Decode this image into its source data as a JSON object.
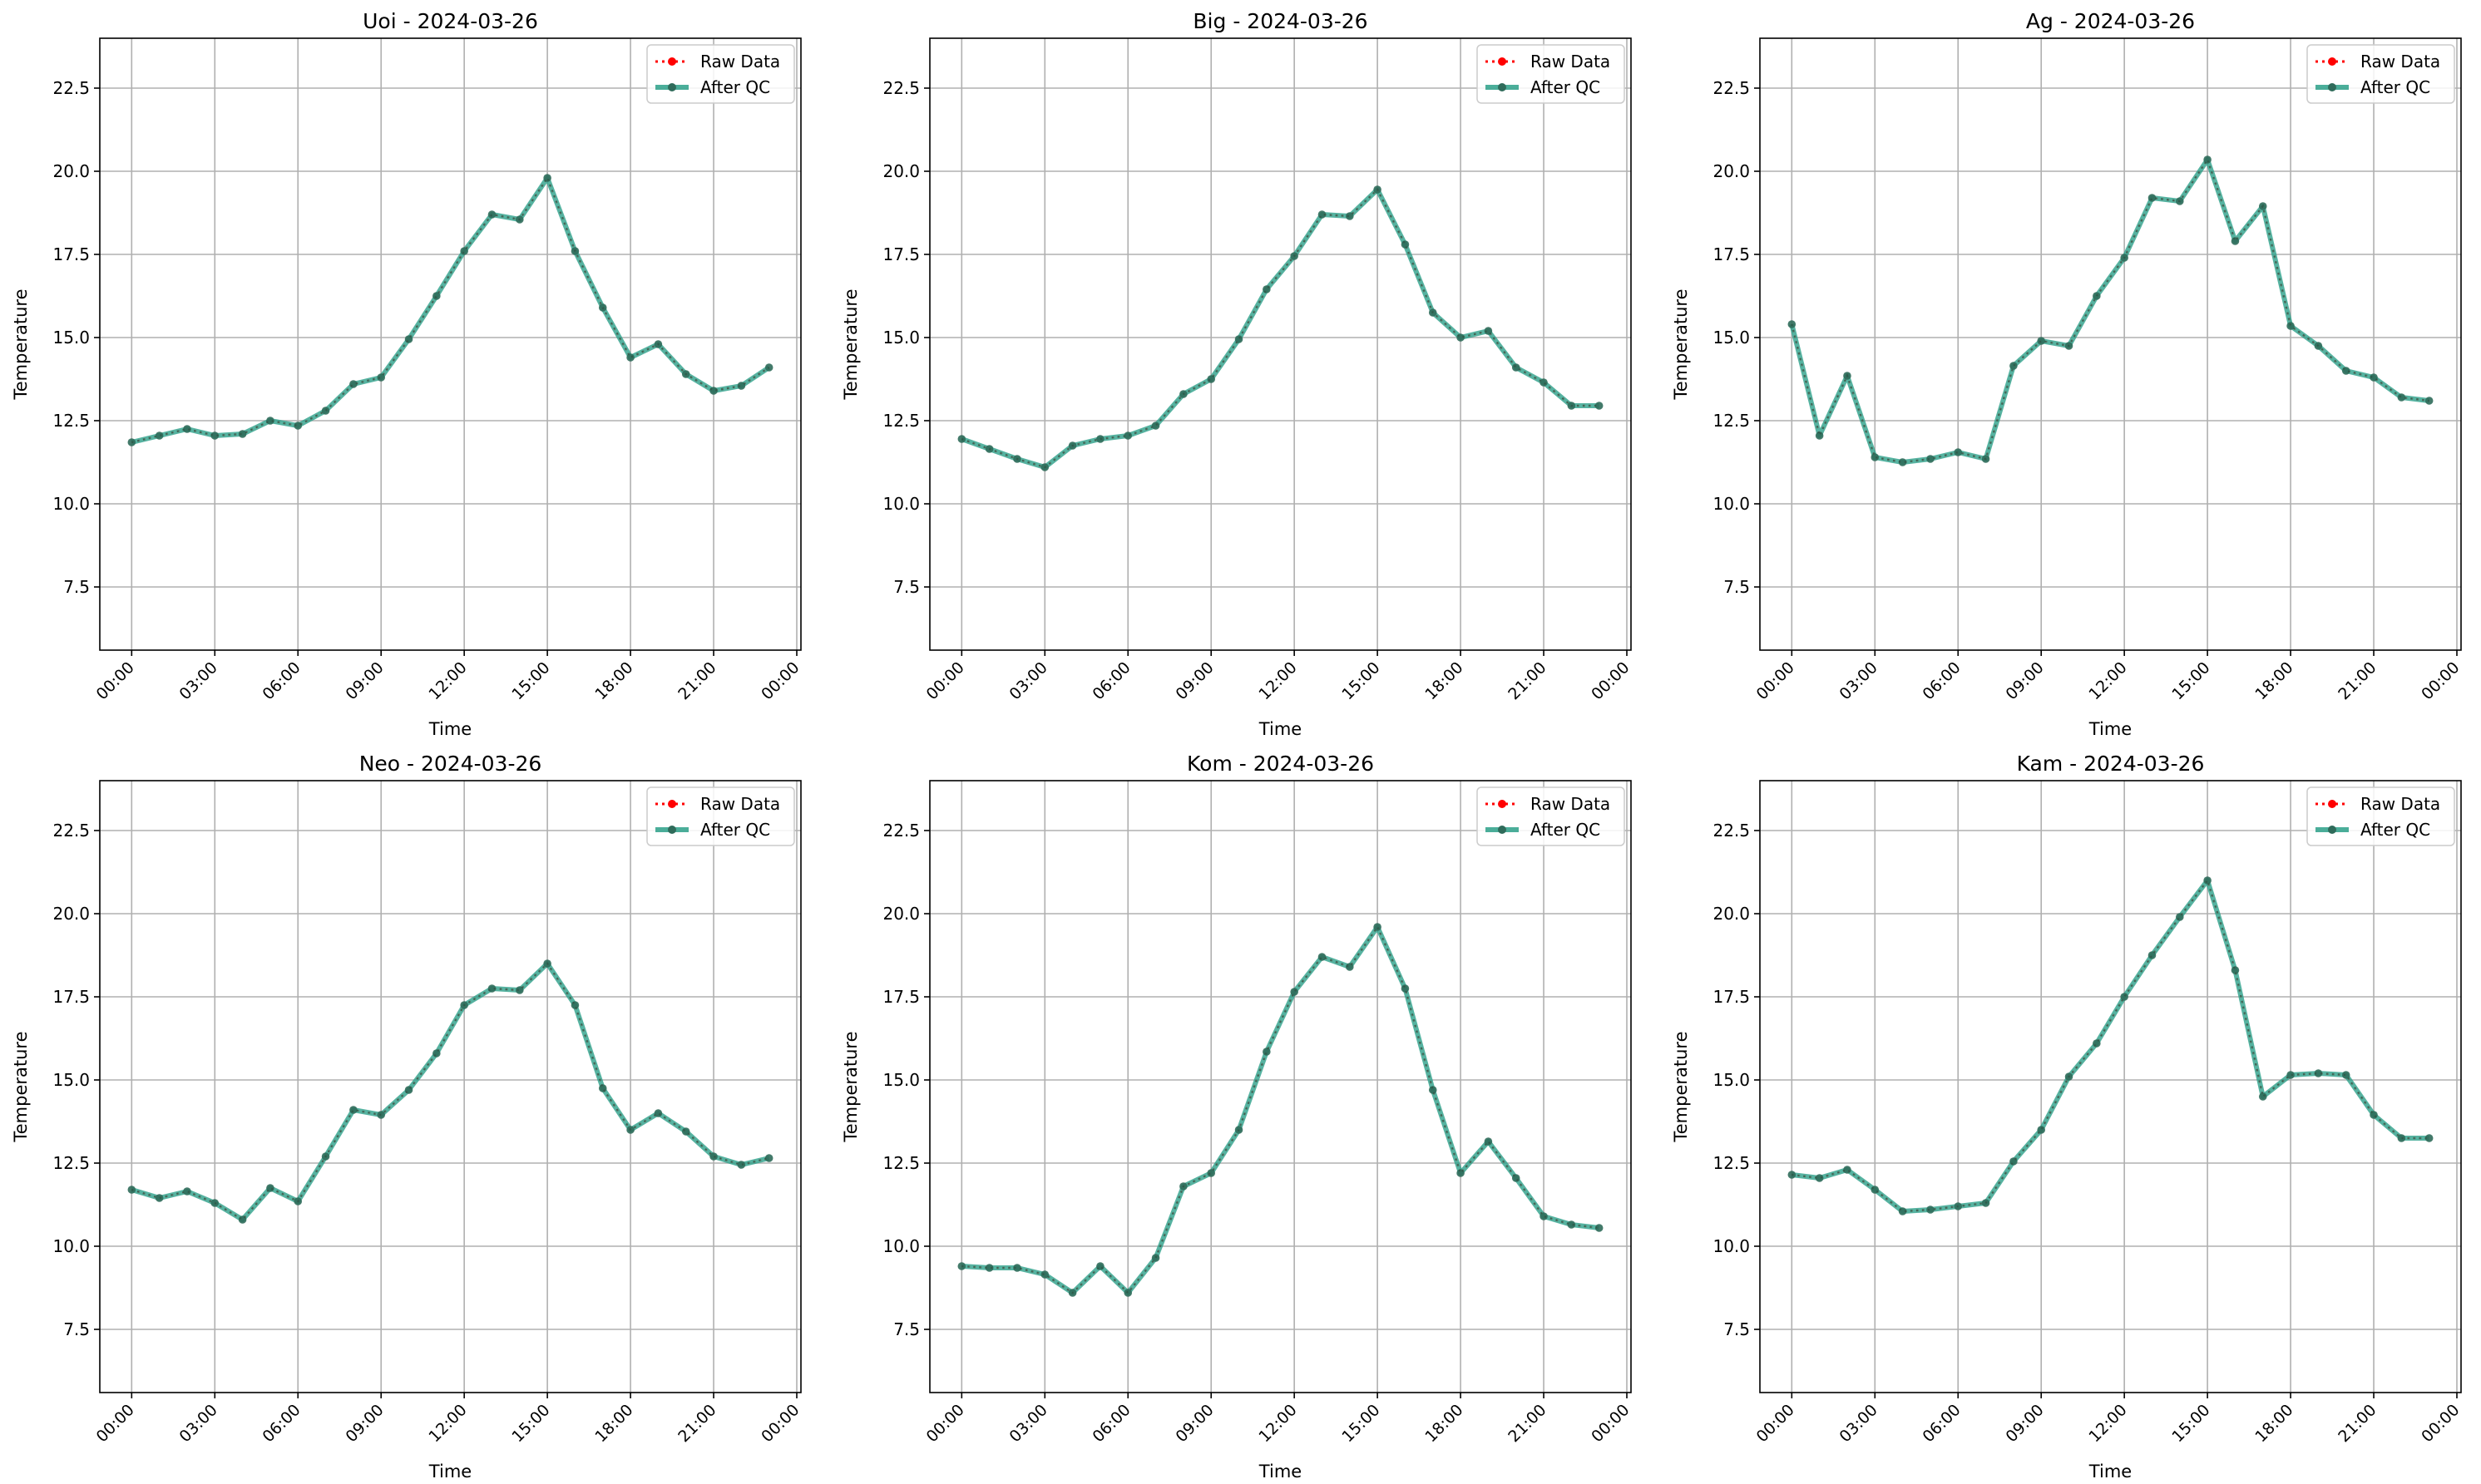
{
  "figure": {
    "x_label": "Time",
    "y_label": "Temperature",
    "legend": {
      "raw_label": "Raw Data",
      "qc_label": "After QC"
    },
    "colors": {
      "raw": "#ff0000",
      "qc": "#2ca089",
      "marker": "#2f6b5a",
      "grid": "#b0b0b0",
      "axis": "#000000"
    }
  },
  "chart_data": [
    {
      "type": "line",
      "title": "Uoi - 2024-03-26",
      "x": [
        "00:00",
        "01:00",
        "02:00",
        "03:00",
        "04:00",
        "05:00",
        "06:00",
        "07:00",
        "08:00",
        "09:00",
        "10:00",
        "11:00",
        "12:00",
        "13:00",
        "14:00",
        "15:00",
        "16:00",
        "17:00",
        "18:00",
        "19:00",
        "20:00",
        "21:00",
        "22:00",
        "23:00"
      ],
      "x_ticks": [
        "00:00",
        "03:00",
        "06:00",
        "09:00",
        "12:00",
        "15:00",
        "18:00",
        "21:00",
        "00:00"
      ],
      "y_ticks": [
        7.5,
        10.0,
        12.5,
        15.0,
        17.5,
        20.0,
        22.5
      ],
      "ylim": [
        5.6,
        24.0
      ],
      "xlabel": "Time",
      "ylabel": "Temperature",
      "legend": "top-right",
      "grid": true,
      "series": [
        {
          "name": "Raw Data",
          "values": [
            11.85,
            12.05,
            12.25,
            12.05,
            12.1,
            12.5,
            12.35,
            12.8,
            13.6,
            13.8,
            14.95,
            16.25,
            17.6,
            18.7,
            18.55,
            19.8,
            17.6,
            15.9,
            14.4,
            14.8,
            13.9,
            13.4,
            13.55,
            14.1
          ]
        },
        {
          "name": "After QC",
          "values": [
            11.85,
            12.05,
            12.25,
            12.05,
            12.1,
            12.5,
            12.35,
            12.8,
            13.6,
            13.8,
            14.95,
            16.25,
            17.6,
            18.7,
            18.55,
            19.8,
            17.6,
            15.9,
            14.4,
            14.8,
            13.9,
            13.4,
            13.55,
            14.1
          ]
        }
      ]
    },
    {
      "type": "line",
      "title": "Big - 2024-03-26",
      "x": [
        "00:00",
        "01:00",
        "02:00",
        "03:00",
        "04:00",
        "05:00",
        "06:00",
        "07:00",
        "08:00",
        "09:00",
        "10:00",
        "11:00",
        "12:00",
        "13:00",
        "14:00",
        "15:00",
        "16:00",
        "17:00",
        "18:00",
        "19:00",
        "20:00",
        "21:00",
        "22:00",
        "23:00"
      ],
      "x_ticks": [
        "00:00",
        "03:00",
        "06:00",
        "09:00",
        "12:00",
        "15:00",
        "18:00",
        "21:00",
        "00:00"
      ],
      "y_ticks": [
        7.5,
        10.0,
        12.5,
        15.0,
        17.5,
        20.0,
        22.5
      ],
      "ylim": [
        5.6,
        24.0
      ],
      "xlabel": "Time",
      "ylabel": "Temperature",
      "legend": "top-right",
      "grid": true,
      "series": [
        {
          "name": "Raw Data",
          "values": [
            11.95,
            11.65,
            11.35,
            11.1,
            11.75,
            11.95,
            12.05,
            12.35,
            13.3,
            13.75,
            14.95,
            16.45,
            17.45,
            18.7,
            18.65,
            19.45,
            17.8,
            15.75,
            15.0,
            15.2,
            14.1,
            13.65,
            12.95,
            12.95
          ]
        },
        {
          "name": "After QC",
          "values": [
            11.95,
            11.65,
            11.35,
            11.1,
            11.75,
            11.95,
            12.05,
            12.35,
            13.3,
            13.75,
            14.95,
            16.45,
            17.45,
            18.7,
            18.65,
            19.45,
            17.8,
            15.75,
            15.0,
            15.2,
            14.1,
            13.65,
            12.95,
            12.95
          ]
        }
      ]
    },
    {
      "type": "line",
      "title": "Ag - 2024-03-26",
      "x": [
        "00:00",
        "01:00",
        "02:00",
        "03:00",
        "04:00",
        "05:00",
        "06:00",
        "07:00",
        "08:00",
        "09:00",
        "10:00",
        "11:00",
        "12:00",
        "13:00",
        "14:00",
        "15:00",
        "16:00",
        "17:00",
        "18:00",
        "19:00",
        "20:00",
        "21:00",
        "22:00",
        "23:00"
      ],
      "x_ticks": [
        "00:00",
        "03:00",
        "06:00",
        "09:00",
        "12:00",
        "15:00",
        "18:00",
        "21:00",
        "00:00"
      ],
      "y_ticks": [
        7.5,
        10.0,
        12.5,
        15.0,
        17.5,
        20.0,
        22.5
      ],
      "ylim": [
        5.6,
        24.0
      ],
      "xlabel": "Time",
      "ylabel": "Temperature",
      "legend": "top-right",
      "grid": true,
      "series": [
        {
          "name": "Raw Data",
          "values": [
            15.4,
            12.05,
            13.85,
            11.4,
            11.25,
            11.35,
            11.55,
            11.35,
            14.15,
            14.9,
            14.75,
            16.25,
            17.4,
            19.2,
            19.1,
            20.35,
            17.9,
            18.95,
            15.35,
            14.75,
            14.0,
            13.8,
            13.2,
            13.1
          ]
        },
        {
          "name": "After QC",
          "values": [
            15.4,
            12.05,
            13.85,
            11.4,
            11.25,
            11.35,
            11.55,
            11.35,
            14.15,
            14.9,
            14.75,
            16.25,
            17.4,
            19.2,
            19.1,
            20.35,
            17.9,
            18.95,
            15.35,
            14.75,
            14.0,
            13.8,
            13.2,
            13.1
          ]
        }
      ]
    },
    {
      "type": "line",
      "title": "Neo - 2024-03-26",
      "x": [
        "00:00",
        "01:00",
        "02:00",
        "03:00",
        "04:00",
        "05:00",
        "06:00",
        "07:00",
        "08:00",
        "09:00",
        "10:00",
        "11:00",
        "12:00",
        "13:00",
        "14:00",
        "15:00",
        "16:00",
        "17:00",
        "18:00",
        "19:00",
        "20:00",
        "21:00",
        "22:00",
        "23:00"
      ],
      "x_ticks": [
        "00:00",
        "03:00",
        "06:00",
        "09:00",
        "12:00",
        "15:00",
        "18:00",
        "21:00",
        "00:00"
      ],
      "y_ticks": [
        7.5,
        10.0,
        12.5,
        15.0,
        17.5,
        20.0,
        22.5
      ],
      "ylim": [
        5.6,
        24.0
      ],
      "xlabel": "Time",
      "ylabel": "Temperature",
      "legend": "top-right",
      "grid": true,
      "series": [
        {
          "name": "Raw Data",
          "values": [
            11.7,
            11.45,
            11.65,
            11.3,
            10.8,
            11.75,
            11.35,
            12.7,
            14.1,
            13.95,
            14.7,
            15.8,
            17.25,
            17.75,
            17.7,
            18.5,
            17.25,
            14.75,
            13.5,
            14.0,
            13.45,
            12.7,
            12.45,
            12.65
          ]
        },
        {
          "name": "After QC",
          "values": [
            11.7,
            11.45,
            11.65,
            11.3,
            10.8,
            11.75,
            11.35,
            12.7,
            14.1,
            13.95,
            14.7,
            15.8,
            17.25,
            17.75,
            17.7,
            18.5,
            17.25,
            14.75,
            13.5,
            14.0,
            13.45,
            12.7,
            12.45,
            12.65
          ]
        }
      ]
    },
    {
      "type": "line",
      "title": "Kom - 2024-03-26",
      "x": [
        "00:00",
        "01:00",
        "02:00",
        "03:00",
        "04:00",
        "05:00",
        "06:00",
        "07:00",
        "08:00",
        "09:00",
        "10:00",
        "11:00",
        "12:00",
        "13:00",
        "14:00",
        "15:00",
        "16:00",
        "17:00",
        "18:00",
        "19:00",
        "20:00",
        "21:00",
        "22:00",
        "23:00"
      ],
      "x_ticks": [
        "00:00",
        "03:00",
        "06:00",
        "09:00",
        "12:00",
        "15:00",
        "18:00",
        "21:00",
        "00:00"
      ],
      "y_ticks": [
        7.5,
        10.0,
        12.5,
        15.0,
        17.5,
        20.0,
        22.5
      ],
      "ylim": [
        5.6,
        24.0
      ],
      "xlabel": "Time",
      "ylabel": "Temperature",
      "legend": "top-right",
      "grid": true,
      "series": [
        {
          "name": "Raw Data",
          "values": [
            9.4,
            9.35,
            9.35,
            9.15,
            8.6,
            9.4,
            8.6,
            9.65,
            11.8,
            12.2,
            13.5,
            15.85,
            17.65,
            18.7,
            18.4,
            19.6,
            17.75,
            14.7,
            12.2,
            13.15,
            12.05,
            10.9,
            10.65,
            10.55
          ]
        },
        {
          "name": "After QC",
          "values": [
            9.4,
            9.35,
            9.35,
            9.15,
            8.6,
            9.4,
            8.6,
            9.65,
            11.8,
            12.2,
            13.5,
            15.85,
            17.65,
            18.7,
            18.4,
            19.6,
            17.75,
            14.7,
            12.2,
            13.15,
            12.05,
            10.9,
            10.65,
            10.55
          ]
        }
      ]
    },
    {
      "type": "line",
      "title": "Kam - 2024-03-26",
      "x": [
        "00:00",
        "01:00",
        "02:00",
        "03:00",
        "04:00",
        "05:00",
        "06:00",
        "07:00",
        "08:00",
        "09:00",
        "10:00",
        "11:00",
        "12:00",
        "13:00",
        "14:00",
        "15:00",
        "16:00",
        "17:00",
        "18:00",
        "19:00",
        "20:00",
        "21:00",
        "22:00",
        "23:00"
      ],
      "x_ticks": [
        "00:00",
        "03:00",
        "06:00",
        "09:00",
        "12:00",
        "15:00",
        "18:00",
        "21:00",
        "00:00"
      ],
      "y_ticks": [
        7.5,
        10.0,
        12.5,
        15.0,
        17.5,
        20.0,
        22.5
      ],
      "ylim": [
        5.6,
        24.0
      ],
      "xlabel": "Time",
      "ylabel": "Temperature",
      "legend": "top-right",
      "grid": true,
      "series": [
        {
          "name": "Raw Data",
          "values": [
            12.15,
            12.05,
            12.3,
            11.7,
            11.05,
            11.1,
            11.2,
            11.3,
            12.55,
            13.5,
            15.1,
            16.1,
            17.5,
            18.75,
            19.9,
            21.0,
            18.3,
            14.5,
            15.15,
            15.2,
            15.15,
            13.95,
            13.25,
            13.25
          ]
        },
        {
          "name": "After QC",
          "values": [
            12.15,
            12.05,
            12.3,
            11.7,
            11.05,
            11.1,
            11.2,
            11.3,
            12.55,
            13.5,
            15.1,
            16.1,
            17.5,
            18.75,
            19.9,
            21.0,
            18.3,
            14.5,
            15.15,
            15.2,
            15.15,
            13.95,
            13.25,
            13.25
          ]
        }
      ]
    }
  ]
}
